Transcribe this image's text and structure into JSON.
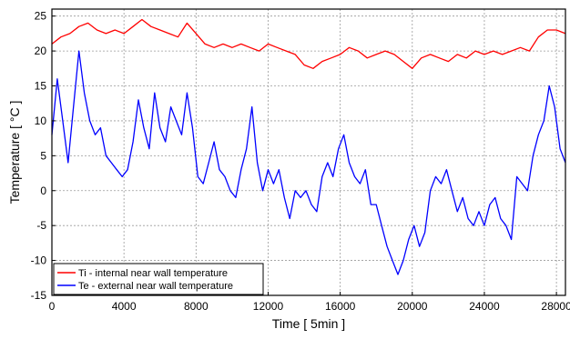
{
  "chart_data": {
    "type": "line",
    "xlabel": "Time [ 5min ]",
    "ylabel": "Temperature [ °C ]",
    "xlim": [
      0,
      28500
    ],
    "ylim": [
      -15,
      26
    ],
    "x_ticks": [
      0,
      4000,
      8000,
      12000,
      16000,
      20000,
      24000,
      28000
    ],
    "y_ticks": [
      -15,
      -10,
      -5,
      0,
      5,
      10,
      15,
      20,
      25
    ],
    "grid": true,
    "legend_position": "bottom-left",
    "series": [
      {
        "name": "Ti - internal near wall temperature",
        "color": "#ff0000",
        "x": [
          0,
          500,
          1000,
          1500,
          2000,
          2500,
          3000,
          3500,
          4000,
          4500,
          5000,
          5500,
          6000,
          6500,
          7000,
          7500,
          8000,
          8500,
          9000,
          9500,
          10000,
          10500,
          11000,
          11500,
          12000,
          12500,
          13000,
          13500,
          14000,
          14500,
          15000,
          15500,
          16000,
          16500,
          17000,
          17500,
          18000,
          18500,
          19000,
          19500,
          20000,
          20500,
          21000,
          21500,
          22000,
          22500,
          23000,
          23500,
          24000,
          24500,
          25000,
          25500,
          26000,
          26500,
          27000,
          27500,
          28000,
          28500
        ],
        "y": [
          21,
          22,
          22.5,
          23.5,
          24,
          23,
          22.5,
          23,
          22.5,
          23.5,
          24.5,
          23.5,
          23,
          22.5,
          22,
          24,
          22.5,
          21,
          20.5,
          21,
          20.5,
          21,
          20.5,
          20,
          21,
          20.5,
          20,
          19.5,
          18,
          17.5,
          18.5,
          19,
          19.5,
          20.5,
          20,
          19,
          19.5,
          20,
          19.5,
          18.5,
          17.5,
          19,
          19.5,
          19,
          18.5,
          19.5,
          19,
          20,
          19.5,
          20,
          19.5,
          20,
          20.5,
          20,
          22,
          23,
          23,
          22.5
        ]
      },
      {
        "name": "Te - external near wall temperature",
        "color": "#0000ff",
        "x": [
          0,
          300,
          600,
          900,
          1200,
          1500,
          1800,
          2100,
          2400,
          2700,
          3000,
          3300,
          3600,
          3900,
          4200,
          4500,
          4800,
          5100,
          5400,
          5700,
          6000,
          6300,
          6600,
          6900,
          7200,
          7500,
          7800,
          8100,
          8400,
          8700,
          9000,
          9300,
          9600,
          9900,
          10200,
          10500,
          10800,
          11100,
          11400,
          11700,
          12000,
          12300,
          12600,
          12900,
          13200,
          13500,
          13800,
          14100,
          14400,
          14700,
          15000,
          15300,
          15600,
          15900,
          16200,
          16500,
          16800,
          17100,
          17400,
          17700,
          18000,
          18300,
          18600,
          18900,
          19200,
          19500,
          19800,
          20100,
          20400,
          20700,
          21000,
          21300,
          21600,
          21900,
          22200,
          22500,
          22800,
          23100,
          23400,
          23700,
          24000,
          24300,
          24600,
          24900,
          25200,
          25500,
          25800,
          26100,
          26400,
          26700,
          27000,
          27300,
          27600,
          27900,
          28200,
          28500
        ],
        "y": [
          8,
          16,
          10,
          4,
          12,
          20,
          14,
          10,
          8,
          9,
          5,
          4,
          3,
          2,
          3,
          7,
          13,
          9,
          6,
          14,
          9,
          7,
          12,
          10,
          8,
          14,
          9,
          2,
          1,
          4,
          7,
          3,
          2,
          0,
          -1,
          3,
          6,
          12,
          4,
          0,
          3,
          1,
          3,
          -1,
          -4,
          0,
          -1,
          0,
          -2,
          -3,
          2,
          4,
          2,
          6,
          8,
          4,
          2,
          1,
          3,
          -2,
          -2,
          -5,
          -8,
          -10,
          -12,
          -10,
          -7,
          -5,
          -8,
          -6,
          0,
          2,
          1,
          3,
          0,
          -3,
          -1,
          -4,
          -5,
          -3,
          -5,
          -2,
          -1,
          -4,
          -5,
          -7,
          2,
          1,
          0,
          5,
          8,
          10,
          15,
          12,
          6,
          4
        ]
      }
    ]
  }
}
